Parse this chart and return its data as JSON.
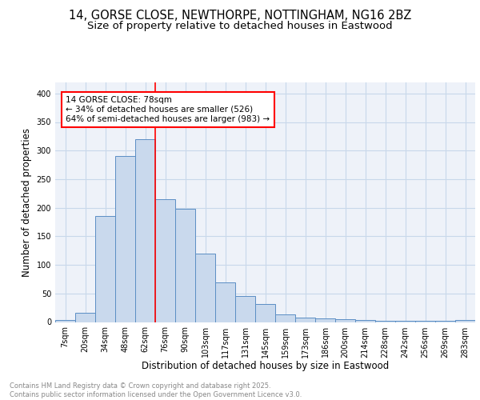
{
  "title1": "14, GORSE CLOSE, NEWTHORPE, NOTTINGHAM, NG16 2BZ",
  "title2": "Size of property relative to detached houses in Eastwood",
  "xlabel": "Distribution of detached houses by size in Eastwood",
  "ylabel": "Number of detached properties",
  "bar_labels": [
    "7sqm",
    "20sqm",
    "34sqm",
    "48sqm",
    "62sqm",
    "76sqm",
    "90sqm",
    "103sqm",
    "117sqm",
    "131sqm",
    "145sqm",
    "159sqm",
    "173sqm",
    "186sqm",
    "200sqm",
    "214sqm",
    "228sqm",
    "242sqm",
    "256sqm",
    "269sqm",
    "283sqm"
  ],
  "bar_values": [
    3,
    16,
    185,
    290,
    320,
    215,
    198,
    120,
    70,
    45,
    32,
    13,
    8,
    6,
    5,
    4,
    2,
    2,
    2,
    2,
    3
  ],
  "bar_color": "#c9d9ed",
  "bar_edge_color": "#5b8ec4",
  "vline_x_index": 5,
  "vline_color": "red",
  "annotation_text": "14 GORSE CLOSE: 78sqm\n← 34% of detached houses are smaller (526)\n64% of semi-detached houses are larger (983) →",
  "annotation_box_color": "white",
  "annotation_box_edge": "red",
  "ylim": [
    0,
    420
  ],
  "yticks": [
    0,
    50,
    100,
    150,
    200,
    250,
    300,
    350,
    400
  ],
  "grid_color": "#c8d8ea",
  "bg_color": "#eef2f9",
  "footer": "Contains HM Land Registry data © Crown copyright and database right 2025.\nContains public sector information licensed under the Open Government Licence v3.0.",
  "footer_color": "#888888",
  "title_fontsize": 10.5,
  "subtitle_fontsize": 9.5,
  "tick_fontsize": 7,
  "ylabel_fontsize": 8.5,
  "xlabel_fontsize": 8.5,
  "footer_fontsize": 6,
  "annot_fontsize": 7.5
}
